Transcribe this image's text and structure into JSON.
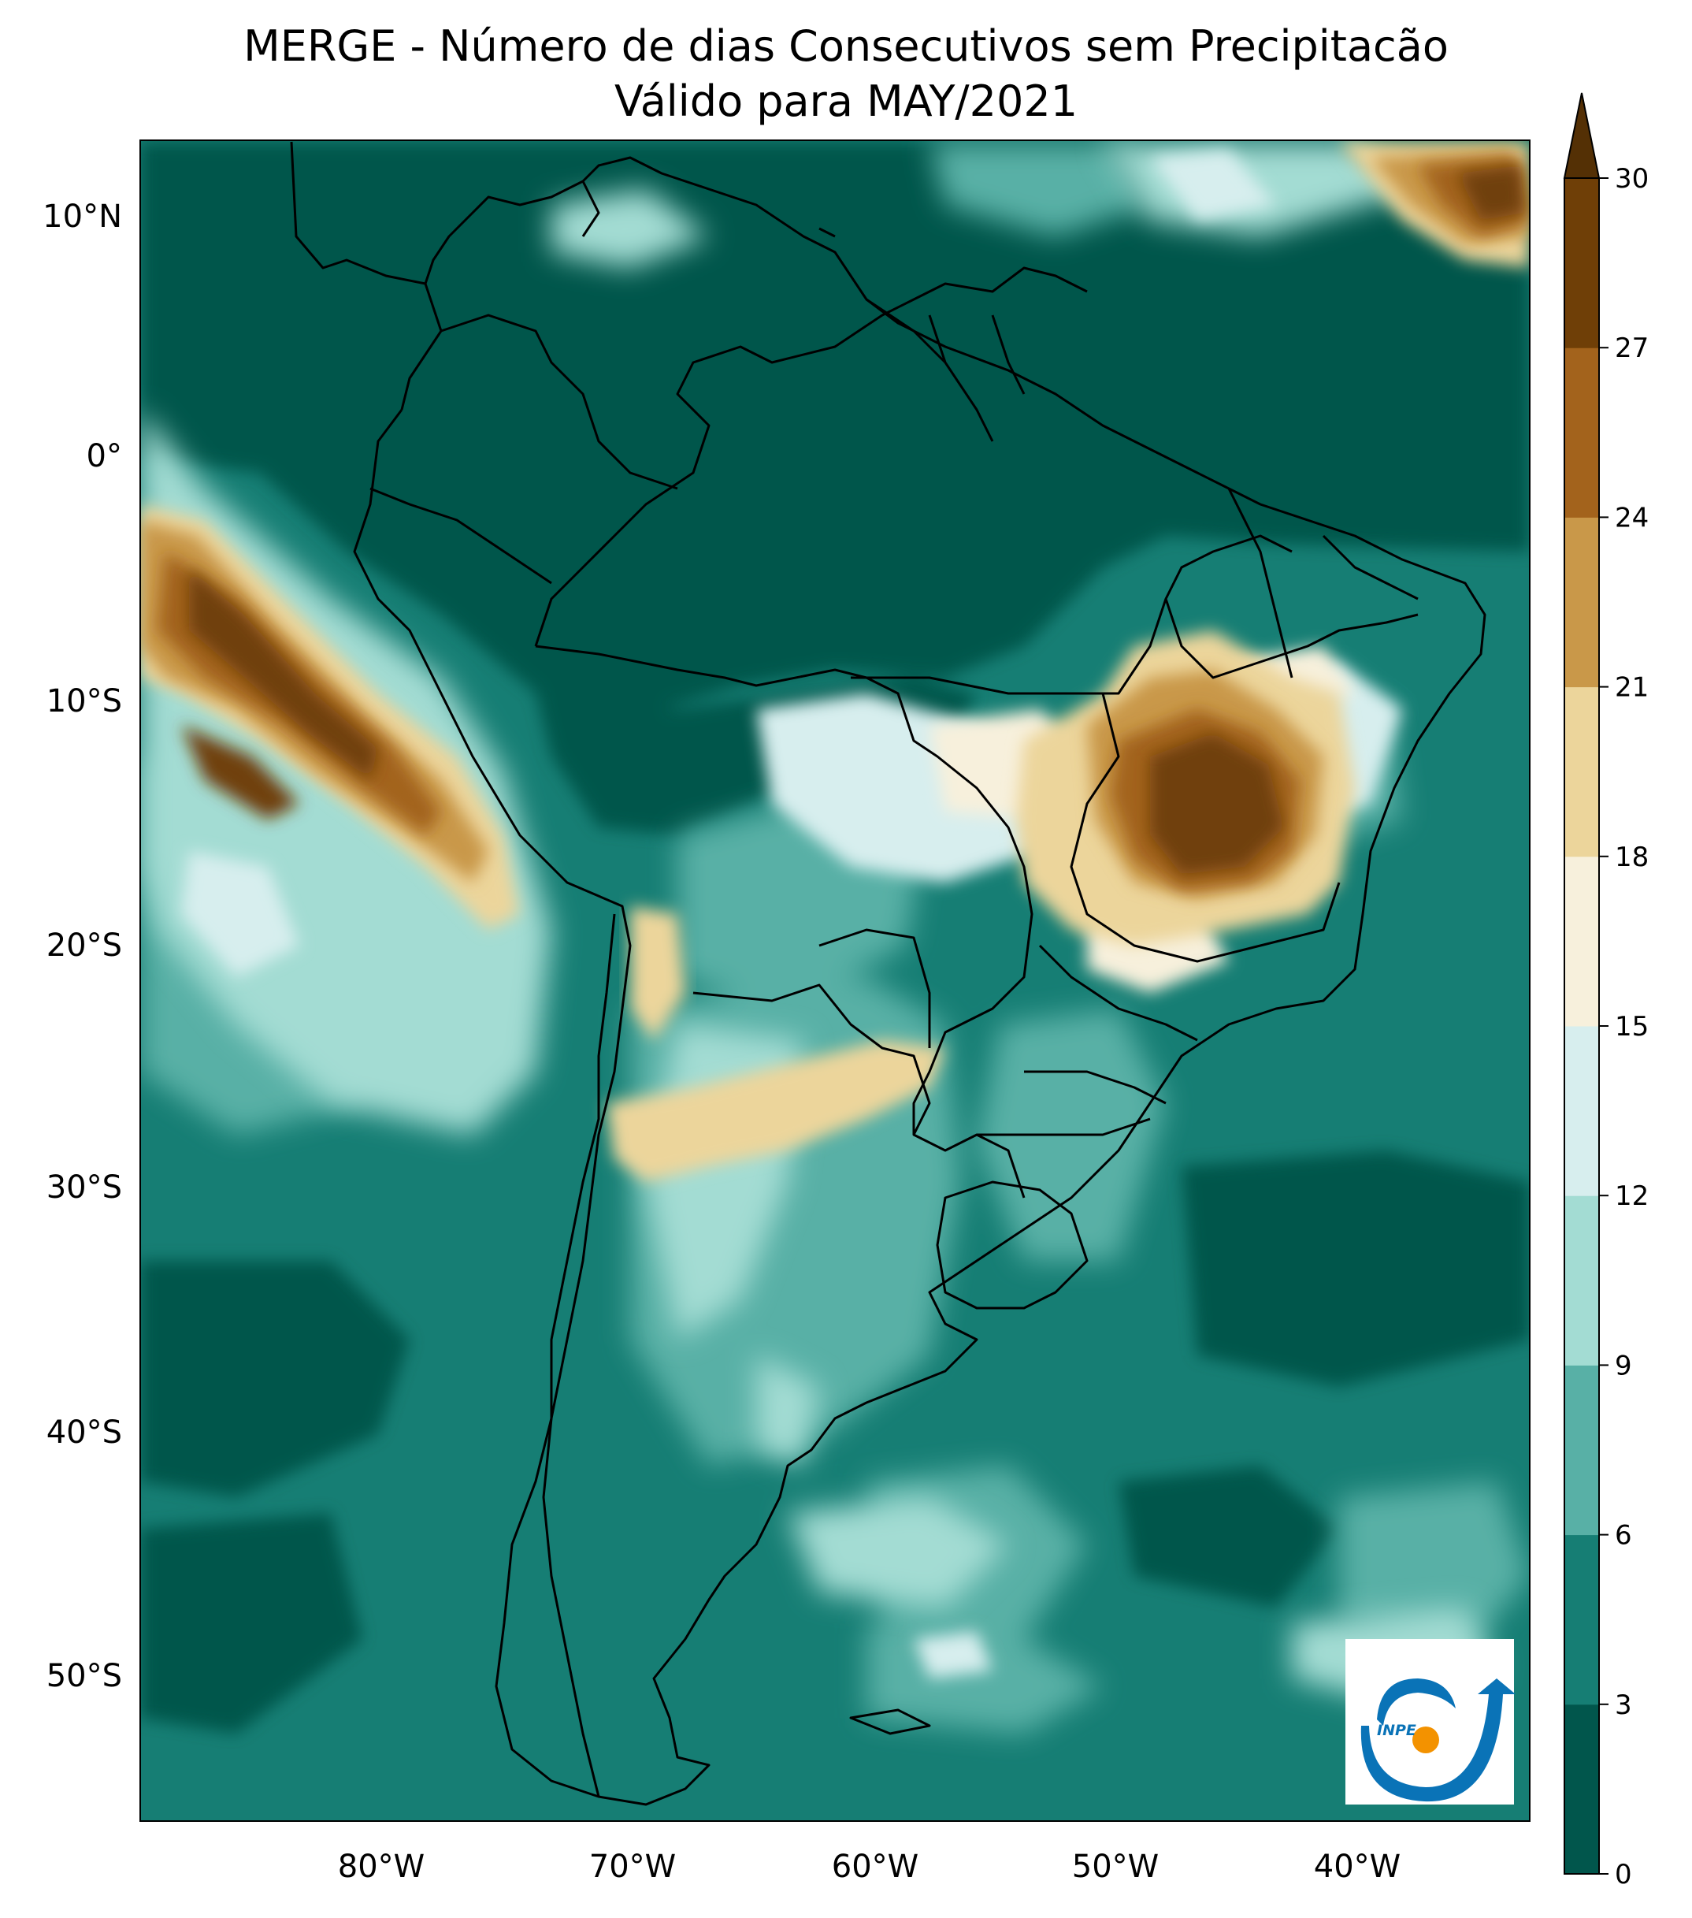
{
  "title": {
    "line1": "MERGE - Número de dias Consecutivos sem Precipitacão",
    "line2": "Válido para MAY/2021"
  },
  "axes": {
    "lat_labels": [
      "10°N",
      "0°",
      "10°S",
      "20°S",
      "30°S",
      "40°S",
      "50°S"
    ],
    "lon_labels": [
      "80°W",
      "70°W",
      "60°W",
      "50°W",
      "40°W"
    ]
  },
  "colorbar": {
    "ticks": [
      "0",
      "3",
      "6",
      "9",
      "12",
      "15",
      "18",
      "21",
      "24",
      "27",
      "30"
    ],
    "colors": [
      "#01564c",
      "#167e74",
      "#58b0a6",
      "#a3dcd3",
      "#d7eeee",
      "#f7f0dc",
      "#ecd59b",
      "#c99849",
      "#a3631c",
      "#6f3f07",
      "#543005"
    ],
    "extend": "max"
  },
  "logo": {
    "text": "INPE",
    "colors": {
      "blue": "#0a73b7",
      "orange": "#f39200"
    }
  },
  "map": {
    "extent_lon": [
      -90,
      -32
    ],
    "extent_lat": [
      -55,
      13
    ],
    "ocean_color": "#167e74",
    "boundary_color": "#000000"
  }
}
